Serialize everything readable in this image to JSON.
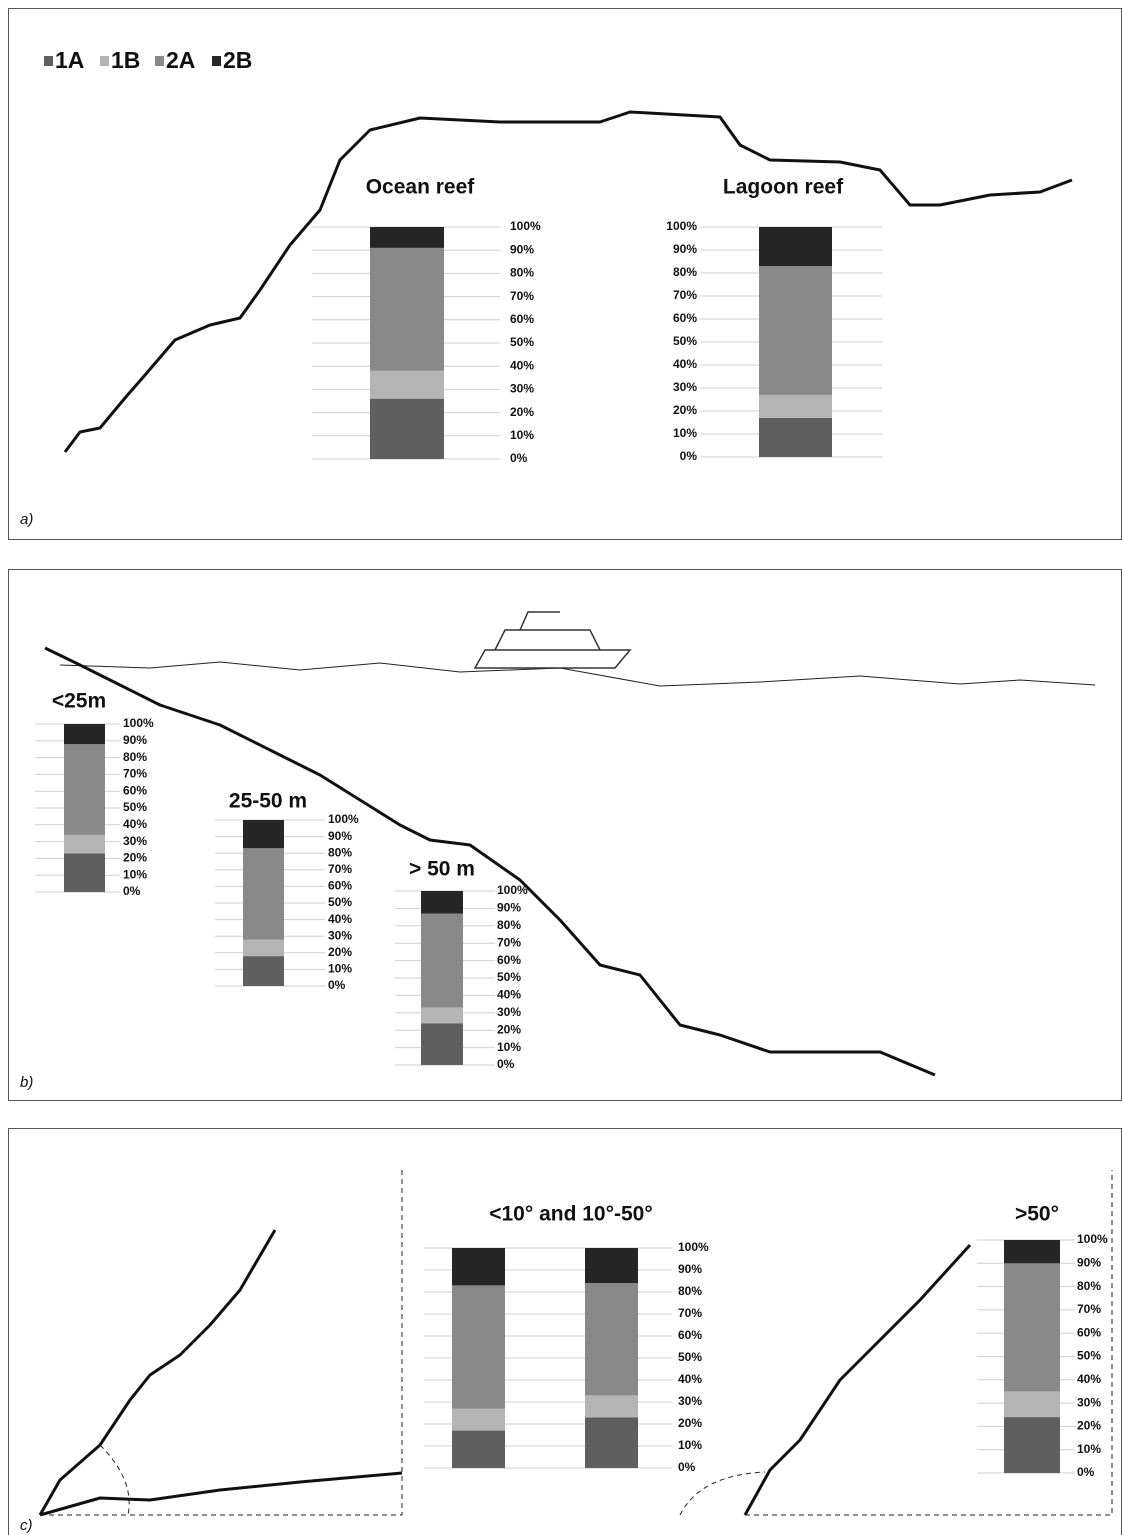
{
  "legend": [
    {
      "name": "1A",
      "color": "#5f5f5f"
    },
    {
      "name": "1B",
      "color": "#b4b4b4"
    },
    {
      "name": "2A",
      "color": "#898989"
    },
    {
      "name": "2B",
      "color": "#262626"
    }
  ],
  "panels": [
    "a)",
    "b)",
    "c)"
  ],
  "chart_data": [
    {
      "type": "bar",
      "stacked": true,
      "title": "Ocean reef",
      "series": [
        {
          "values": [
            26
          ]
        },
        {
          "values": [
            12
          ]
        },
        {
          "values": [
            53
          ]
        },
        {
          "values": [
            9
          ]
        }
      ],
      "ylim": [
        0,
        100
      ],
      "yticks": [
        {
          "value": 0,
          "label": "0%"
        },
        {
          "value": 10,
          "label": "10%"
        },
        {
          "value": 20,
          "label": "20%"
        },
        {
          "value": 30,
          "label": "30%"
        },
        {
          "value": 40,
          "label": "40%"
        },
        {
          "value": 50,
          "label": "50%"
        },
        {
          "value": 60,
          "label": "60%"
        },
        {
          "value": 70,
          "label": "70%"
        },
        {
          "value": 80,
          "label": "80%"
        },
        {
          "value": 90,
          "label": "90%"
        },
        {
          "value": 100,
          "label": "100%"
        }
      ],
      "grid": true
    },
    {
      "type": "bar",
      "stacked": true,
      "title": "Lagoon reef",
      "series": [
        {
          "values": [
            17
          ]
        },
        {
          "values": [
            10
          ]
        },
        {
          "values": [
            56
          ]
        },
        {
          "values": [
            17
          ]
        }
      ],
      "ylim": [
        0,
        100
      ],
      "yticks": [
        {
          "value": 0,
          "label": "0%"
        },
        {
          "value": 10,
          "label": "10%"
        },
        {
          "value": 20,
          "label": "20%"
        },
        {
          "value": 30,
          "label": "30%"
        },
        {
          "value": 40,
          "label": "40%"
        },
        {
          "value": 50,
          "label": "50%"
        },
        {
          "value": 60,
          "label": "60%"
        },
        {
          "value": 70,
          "label": "70%"
        },
        {
          "value": 80,
          "label": "80%"
        },
        {
          "value": 90,
          "label": "90%"
        },
        {
          "value": 100,
          "label": "100%"
        }
      ],
      "grid": true
    },
    {
      "type": "bar",
      "stacked": true,
      "title": "<25m",
      "series": [
        {
          "values": [
            23
          ]
        },
        {
          "values": [
            11
          ]
        },
        {
          "values": [
            54
          ]
        },
        {
          "values": [
            12
          ]
        }
      ],
      "ylim": [
        0,
        100
      ],
      "yticks": [
        {
          "value": 0,
          "label": "0%"
        },
        {
          "value": 10,
          "label": "10%"
        },
        {
          "value": 20,
          "label": "20%"
        },
        {
          "value": 30,
          "label": "30%"
        },
        {
          "value": 40,
          "label": "40%"
        },
        {
          "value": 50,
          "label": "50%"
        },
        {
          "value": 60,
          "label": "60%"
        },
        {
          "value": 70,
          "label": "70%"
        },
        {
          "value": 80,
          "label": "80%"
        },
        {
          "value": 90,
          "label": "90%"
        },
        {
          "value": 100,
          "label": "100%"
        }
      ],
      "grid": true
    },
    {
      "type": "bar",
      "stacked": true,
      "title": "25-50 m",
      "series": [
        {
          "values": [
            18
          ]
        },
        {
          "values": [
            10
          ]
        },
        {
          "values": [
            55
          ]
        },
        {
          "values": [
            17
          ]
        }
      ],
      "ylim": [
        0,
        100
      ],
      "yticks": [
        {
          "value": 0,
          "label": "0%"
        },
        {
          "value": 10,
          "label": "10%"
        },
        {
          "value": 20,
          "label": "20%"
        },
        {
          "value": 30,
          "label": "30%"
        },
        {
          "value": 40,
          "label": "40%"
        },
        {
          "value": 50,
          "label": "50%"
        },
        {
          "value": 60,
          "label": "60%"
        },
        {
          "value": 70,
          "label": "70%"
        },
        {
          "value": 80,
          "label": "80%"
        },
        {
          "value": 90,
          "label": "90%"
        },
        {
          "value": 100,
          "label": "100%"
        }
      ],
      "grid": true
    },
    {
      "type": "bar",
      "stacked": true,
      "title": "> 50 m",
      "series": [
        {
          "values": [
            24
          ]
        },
        {
          "values": [
            9
          ]
        },
        {
          "values": [
            54
          ]
        },
        {
          "values": [
            13
          ]
        }
      ],
      "ylim": [
        0,
        100
      ],
      "yticks": [
        {
          "value": 0,
          "label": "0%"
        },
        {
          "value": 10,
          "label": "10%"
        },
        {
          "value": 20,
          "label": "20%"
        },
        {
          "value": 30,
          "label": "30%"
        },
        {
          "value": 40,
          "label": "40%"
        },
        {
          "value": 50,
          "label": "50%"
        },
        {
          "value": 60,
          "label": "60%"
        },
        {
          "value": 70,
          "label": "70%"
        },
        {
          "value": 80,
          "label": "80%"
        },
        {
          "value": 90,
          "label": "90%"
        },
        {
          "value": 100,
          "label": "100%"
        }
      ],
      "grid": true
    },
    {
      "type": "bar",
      "stacked": true,
      "title": "<10° and 10°-50°",
      "series": [
        {
          "values": [
            17,
            23
          ]
        },
        {
          "values": [
            10,
            10
          ]
        },
        {
          "values": [
            56,
            51
          ]
        },
        {
          "values": [
            17,
            16
          ]
        }
      ],
      "ylim": [
        0,
        100
      ],
      "yticks": [
        {
          "value": 0,
          "label": "0%"
        },
        {
          "value": 10,
          "label": "10%"
        },
        {
          "value": 20,
          "label": "20%"
        },
        {
          "value": 30,
          "label": "30%"
        },
        {
          "value": 40,
          "label": "40%"
        },
        {
          "value": 50,
          "label": "50%"
        },
        {
          "value": 60,
          "label": "60%"
        },
        {
          "value": 70,
          "label": "70%"
        },
        {
          "value": 80,
          "label": "80%"
        },
        {
          "value": 90,
          "label": "90%"
        },
        {
          "value": 100,
          "label": "100%"
        }
      ],
      "grid": true
    },
    {
      "type": "bar",
      "stacked": true,
      "title": ">50°",
      "series": [
        {
          "values": [
            24
          ]
        },
        {
          "values": [
            11
          ]
        },
        {
          "values": [
            55
          ]
        },
        {
          "values": [
            10
          ]
        }
      ],
      "ylim": [
        0,
        100
      ],
      "yticks": [
        {
          "value": 0,
          "label": "0%"
        },
        {
          "value": 10,
          "label": "10%"
        },
        {
          "value": 20,
          "label": "20%"
        },
        {
          "value": 30,
          "label": "30%"
        },
        {
          "value": 40,
          "label": "40%"
        },
        {
          "value": 50,
          "label": "50%"
        },
        {
          "value": 60,
          "label": "60%"
        },
        {
          "value": 70,
          "label": "70%"
        },
        {
          "value": 80,
          "label": "80%"
        },
        {
          "value": 90,
          "label": "90%"
        },
        {
          "value": 100,
          "label": "100%"
        }
      ],
      "grid": true
    }
  ]
}
